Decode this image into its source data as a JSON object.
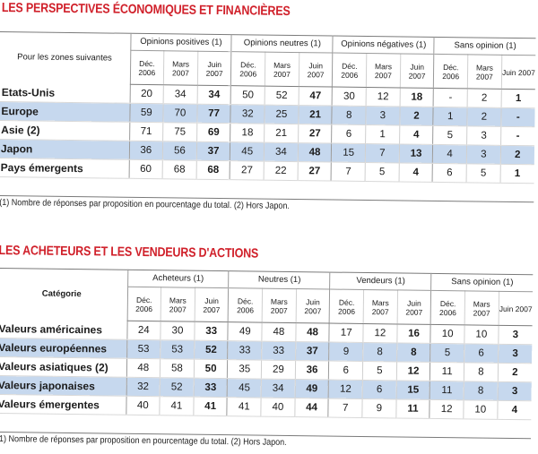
{
  "section1": {
    "title": "LES PERSPECTIVES ÉCONOMIQUES ET FINANCIÈRES",
    "corner": "Pour les zones suivantes",
    "groups": [
      "Opinions positives (1)",
      "Opinions neutres (1)",
      "Opinions négatives (1)",
      "Sans opinion (1)"
    ],
    "periods": [
      "Déc. 2006",
      "Mars 2007",
      "Juin 2007"
    ],
    "rows": [
      {
        "label": "Etats-Unis",
        "values": [
          "20",
          "34",
          "34",
          "50",
          "52",
          "47",
          "30",
          "12",
          "18",
          "-",
          "2",
          "1"
        ]
      },
      {
        "label": "Europe",
        "values": [
          "59",
          "70",
          "77",
          "32",
          "25",
          "21",
          "8",
          "3",
          "2",
          "1",
          "2",
          "-"
        ]
      },
      {
        "label": "Asie (2)",
        "values": [
          "71",
          "75",
          "69",
          "18",
          "21",
          "27",
          "6",
          "1",
          "4",
          "5",
          "3",
          "-"
        ]
      },
      {
        "label": "Japon",
        "values": [
          "36",
          "56",
          "37",
          "45",
          "34",
          "48",
          "15",
          "7",
          "13",
          "4",
          "3",
          "2"
        ]
      },
      {
        "label": "Pays émergents",
        "values": [
          "60",
          "68",
          "68",
          "27",
          "22",
          "27",
          "7",
          "5",
          "4",
          "6",
          "5",
          "1"
        ]
      }
    ],
    "note": "(1) Nombre de réponses par proposition en pourcentage du total. (2) Hors Japon."
  },
  "section2": {
    "title": "LES ACHETEURS ET LES VENDEURS D'ACTIONS",
    "corner": "Catégorie",
    "groups": [
      "Acheteurs (1)",
      "Neutres (1)",
      "Vendeurs (1)",
      "Sans opinion (1)"
    ],
    "periods": [
      "Déc. 2006",
      "Mars 2007",
      "Juin 2007"
    ],
    "rows": [
      {
        "label": "Valeurs américaines",
        "values": [
          "24",
          "30",
          "33",
          "49",
          "48",
          "48",
          "17",
          "12",
          "16",
          "10",
          "10",
          "3"
        ]
      },
      {
        "label": "Valeurs européennes",
        "values": [
          "53",
          "53",
          "52",
          "33",
          "33",
          "37",
          "9",
          "8",
          "8",
          "5",
          "6",
          "3"
        ]
      },
      {
        "label": "Valeurs asiatiques (2)",
        "values": [
          "48",
          "58",
          "50",
          "35",
          "29",
          "36",
          "6",
          "5",
          "12",
          "11",
          "8",
          "2"
        ]
      },
      {
        "label": "Valeurs japonaises",
        "values": [
          "32",
          "52",
          "33",
          "45",
          "34",
          "49",
          "12",
          "6",
          "15",
          "11",
          "8",
          "3"
        ]
      },
      {
        "label": "Valeurs émergentes",
        "values": [
          "40",
          "41",
          "41",
          "41",
          "40",
          "44",
          "7",
          "9",
          "11",
          "12",
          "10",
          "4"
        ]
      }
    ],
    "note": "(1) Nombre de réponses par proposition en pourcentage du total. (2) Hors Japon."
  },
  "colors": {
    "title": "#d0202a",
    "row_highlight": "#c6d8ee",
    "row_plain": "#ffffff"
  }
}
